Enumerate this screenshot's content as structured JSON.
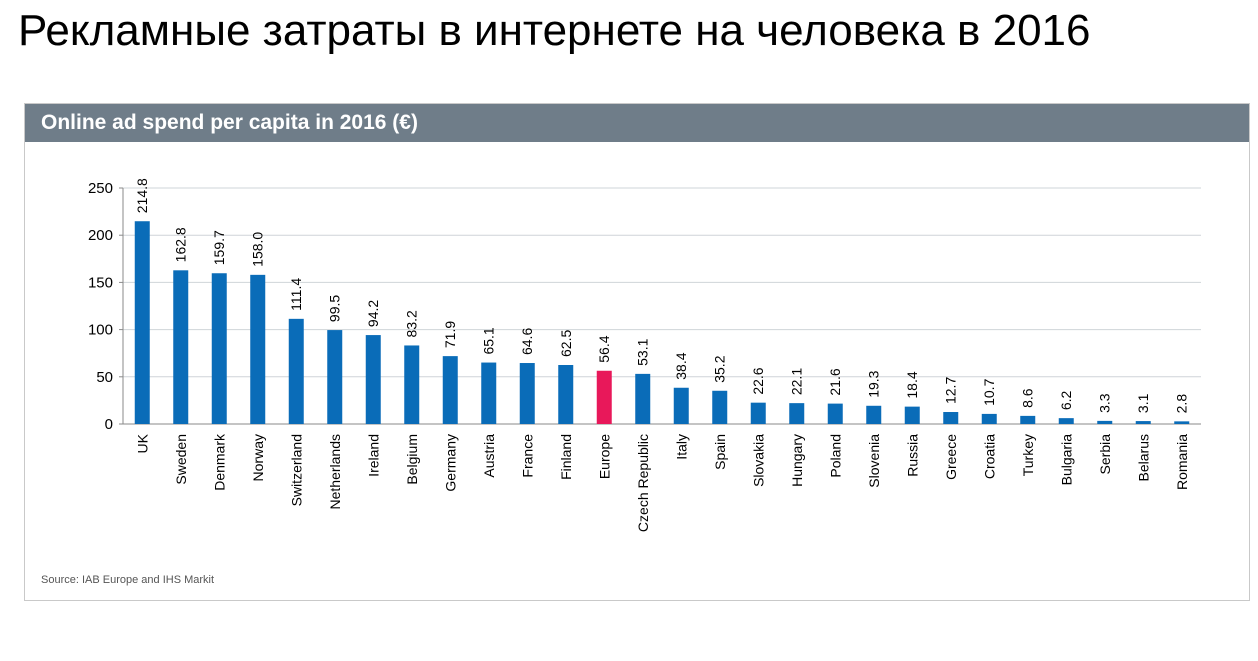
{
  "page": {
    "title": "Рекламные затраты в интернете на человека в 2016"
  },
  "colors": {
    "bar": "#0a6cb8",
    "highlight": "#e8185a",
    "header_bg": "#6f7d89",
    "grid": "#cfd4d8"
  },
  "chart_data": {
    "type": "bar",
    "title": "Online ad spend per capita in 2016 (€)",
    "source": "Source: IAB Europe and IHS Markit",
    "xlabel": "",
    "ylabel": "",
    "ylim": [
      0,
      250
    ],
    "yticks": [
      0,
      50,
      100,
      150,
      200,
      250
    ],
    "grid": true,
    "highlight_category": "Europe",
    "categories": [
      "UK",
      "Sweden",
      "Denmark",
      "Norway",
      "Switzerland",
      "Netherlands",
      "Ireland",
      "Belgium",
      "Germany",
      "Austria",
      "France",
      "Finland",
      "Europe",
      "Czech Republic",
      "Italy",
      "Spain",
      "Slovakia",
      "Hungary",
      "Poland",
      "Slovenia",
      "Russia",
      "Greece",
      "Croatia",
      "Turkey",
      "Bulgaria",
      "Serbia",
      "Belarus",
      "Romania"
    ],
    "values": [
      214.8,
      162.8,
      159.7,
      158.0,
      111.4,
      99.5,
      94.2,
      83.2,
      71.9,
      65.1,
      64.6,
      62.5,
      56.4,
      53.1,
      38.4,
      35.2,
      22.6,
      22.1,
      21.6,
      19.3,
      18.4,
      12.7,
      10.7,
      8.6,
      6.2,
      3.3,
      3.1,
      2.8
    ],
    "value_labels": [
      "214.8",
      "162.8",
      "159.7",
      "158.0",
      "111.4",
      "99.5",
      "94.2",
      "83.2",
      "71.9",
      "65.1",
      "64.6",
      "62.5",
      "56.4",
      "53.1",
      "38.4",
      "35.2",
      "22.6",
      "22.1",
      "21.6",
      "19.3",
      "18.4",
      "12.7",
      "10.7",
      "8.6",
      "6.2",
      "3.3",
      "3.1",
      "2.8"
    ]
  }
}
